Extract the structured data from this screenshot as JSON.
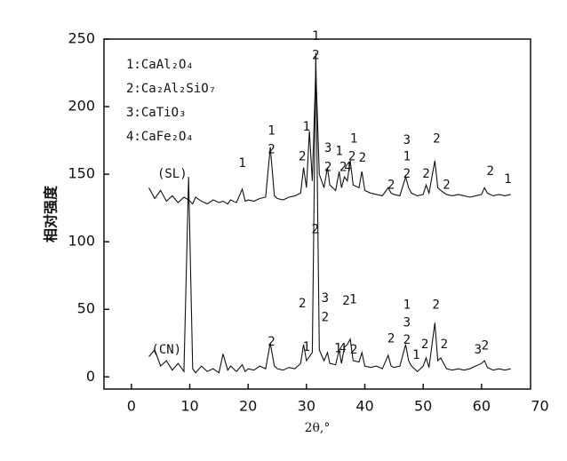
{
  "chart_data": {
    "type": "line",
    "xlabel": "2θ,°",
    "ylabel": "相对强度",
    "xlim": [
      -4.7,
      68.4
    ],
    "ylim": [
      -9,
      250
    ],
    "xticks": [
      0,
      10,
      20,
      30,
      40,
      50,
      60,
      70
    ],
    "yticks": [
      0,
      50,
      100,
      150,
      200,
      250
    ],
    "legend_text": [
      "1:CaAl₂O₄",
      "2:Ca₂Al₂SiO₇",
      "3:CaTiO₃",
      "4:CaFe₂O₄"
    ],
    "x": [
      3,
      4,
      5,
      6,
      7,
      8,
      9,
      9.8,
      10.5,
      11,
      12,
      13,
      14,
      15,
      15.7,
      16.5,
      17,
      18,
      19,
      19.5,
      20,
      21,
      22,
      23,
      23.8,
      24.5,
      25,
      26,
      27,
      28,
      29,
      29.5,
      30,
      30.5,
      31,
      31.6,
      32.2,
      33,
      33.6,
      34,
      35,
      35.6,
      36,
      36.5,
      37,
      37.5,
      38,
      39,
      39.5,
      40,
      41,
      42,
      43,
      44,
      44.5,
      45,
      46,
      47,
      47.5,
      48,
      49,
      50,
      50.5,
      51,
      52,
      52.5,
      53,
      54,
      55,
      56,
      57,
      58,
      59,
      60,
      60.5,
      61,
      62,
      63,
      64,
      65
    ],
    "series": [
      {
        "color": "#111111",
        "values": [
          140,
          132,
          138,
          130,
          134,
          129,
          133,
          131,
          128,
          133,
          130,
          128,
          131,
          129,
          130,
          128,
          131,
          129,
          139,
          130,
          131,
          130,
          132,
          133,
          170,
          134,
          132,
          131,
          133,
          134,
          136,
          155,
          140,
          182,
          145,
          228,
          150,
          140,
          155,
          142,
          138,
          152,
          140,
          148,
          145,
          160,
          142,
          140,
          152,
          138,
          136,
          135,
          134,
          140,
          136,
          135,
          134,
          148,
          140,
          136,
          134,
          135,
          142,
          136,
          160,
          140,
          138,
          135,
          134,
          135,
          134,
          133,
          134,
          135,
          140,
          136,
          134,
          135,
          134,
          135
        ]
      },
      {
        "color": "#111111",
        "values": [
          15,
          20,
          8,
          12,
          5,
          10,
          4,
          148,
          6,
          3,
          8,
          4,
          6,
          3,
          17,
          5,
          8,
          4,
          9,
          4,
          6,
          5,
          8,
          6,
          25,
          8,
          6,
          5,
          7,
          6,
          10,
          24,
          12,
          15,
          18,
          240,
          20,
          12,
          18,
          10,
          9,
          20,
          10,
          22,
          24,
          28,
          12,
          11,
          18,
          8,
          7,
          8,
          6,
          16,
          8,
          7,
          8,
          24,
          12,
          8,
          4,
          8,
          14,
          7,
          40,
          12,
          14,
          6,
          5,
          6,
          5,
          6,
          8,
          10,
          12,
          7,
          5,
          6,
          5,
          6
        ]
      }
    ],
    "annotations": [
      {
        "x": 7,
        "y": 150,
        "text": "(SL)"
      },
      {
        "x": 6,
        "y": 20,
        "text": "(CN)"
      },
      {
        "x": 19,
        "y": 158,
        "text": "1"
      },
      {
        "x": 24,
        "y": 182,
        "text": "1"
      },
      {
        "x": 24,
        "y": 168,
        "text": "2"
      },
      {
        "x": 29.3,
        "y": 163,
        "text": "2"
      },
      {
        "x": 30,
        "y": 185,
        "text": "1"
      },
      {
        "x": 31.6,
        "y": 252,
        "text": "1"
      },
      {
        "x": 31.6,
        "y": 238,
        "text": "2"
      },
      {
        "x": 33.7,
        "y": 169,
        "text": "3"
      },
      {
        "x": 33.7,
        "y": 155,
        "text": "2"
      },
      {
        "x": 35.6,
        "y": 167,
        "text": "1"
      },
      {
        "x": 36.3,
        "y": 155,
        "text": "2"
      },
      {
        "x": 37.1,
        "y": 155,
        "text": "4"
      },
      {
        "x": 38.1,
        "y": 176,
        "text": "1"
      },
      {
        "x": 37.8,
        "y": 163,
        "text": "2"
      },
      {
        "x": 39.6,
        "y": 162,
        "text": "2"
      },
      {
        "x": 44.5,
        "y": 142,
        "text": "2"
      },
      {
        "x": 47.2,
        "y": 175,
        "text": "3"
      },
      {
        "x": 47.2,
        "y": 163,
        "text": "1"
      },
      {
        "x": 47.2,
        "y": 150,
        "text": "2"
      },
      {
        "x": 50.5,
        "y": 150,
        "text": "2"
      },
      {
        "x": 52.3,
        "y": 176,
        "text": "2"
      },
      {
        "x": 54,
        "y": 142,
        "text": "2"
      },
      {
        "x": 61.5,
        "y": 152,
        "text": "2"
      },
      {
        "x": 64.5,
        "y": 146,
        "text": "1"
      },
      {
        "x": 31.5,
        "y": 109,
        "text": "2"
      },
      {
        "x": 24,
        "y": 26,
        "text": "2"
      },
      {
        "x": 29.3,
        "y": 54,
        "text": "2"
      },
      {
        "x": 30,
        "y": 22,
        "text": "1"
      },
      {
        "x": 33.2,
        "y": 58,
        "text": "3"
      },
      {
        "x": 33.2,
        "y": 44,
        "text": "2"
      },
      {
        "x": 35.4,
        "y": 21,
        "text": "1"
      },
      {
        "x": 36.2,
        "y": 21,
        "text": "4"
      },
      {
        "x": 36.8,
        "y": 56,
        "text": "2"
      },
      {
        "x": 38,
        "y": 57,
        "text": "1"
      },
      {
        "x": 38.1,
        "y": 20,
        "text": "2"
      },
      {
        "x": 44.5,
        "y": 28,
        "text": "2"
      },
      {
        "x": 47.2,
        "y": 53,
        "text": "1"
      },
      {
        "x": 47.2,
        "y": 40,
        "text": "3"
      },
      {
        "x": 47.2,
        "y": 27,
        "text": "2"
      },
      {
        "x": 48.8,
        "y": 16,
        "text": "1"
      },
      {
        "x": 50.3,
        "y": 24,
        "text": "2"
      },
      {
        "x": 52.2,
        "y": 53,
        "text": "2"
      },
      {
        "x": 53.6,
        "y": 24,
        "text": "2"
      },
      {
        "x": 59.4,
        "y": 20,
        "text": "3"
      },
      {
        "x": 60.6,
        "y": 23,
        "text": "2"
      }
    ]
  }
}
